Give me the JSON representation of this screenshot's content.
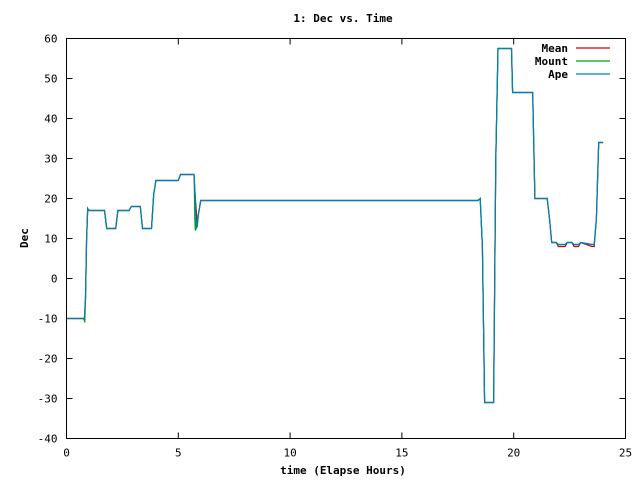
{
  "chart_data": {
    "type": "line",
    "title": "1: Dec vs. Time",
    "xlabel": "time (Elapse Hours)",
    "ylabel": "Dec",
    "xlim": [
      0,
      25
    ],
    "ylim": [
      -40,
      60
    ],
    "xticks": [
      0,
      5,
      10,
      15,
      20,
      25
    ],
    "yticks": [
      -40,
      -30,
      -20,
      -10,
      0,
      10,
      20,
      30,
      40,
      50,
      60
    ],
    "legend_position": "top-right",
    "grid": false,
    "series": [
      {
        "name": "Mean",
        "color": "#cc0000",
        "x": [
          0,
          0.8,
          0.85,
          0.9,
          0.95,
          1.0,
          1.7,
          1.8,
          2.2,
          2.3,
          2.8,
          2.9,
          3.3,
          3.4,
          3.8,
          3.9,
          4.0,
          5.0,
          5.1,
          5.7,
          5.75,
          5.85,
          5.9,
          6.0,
          6.1,
          18.4,
          18.5,
          18.6,
          18.7,
          18.8,
          19.1,
          19.2,
          19.3,
          19.9,
          19.95,
          20.85,
          20.9,
          20.95,
          21.5,
          21.6,
          21.7,
          21.9,
          22.0,
          22.3,
          22.4,
          22.6,
          22.7,
          22.9,
          23.0,
          23.5,
          23.6,
          23.7,
          23.8,
          24.0
        ],
        "y": [
          -10,
          -10,
          -5,
          10,
          17.5,
          17,
          17,
          12.5,
          12.5,
          17,
          17,
          18,
          18,
          12.5,
          12.5,
          21,
          24.5,
          24.5,
          26,
          26,
          21,
          13.5,
          16,
          19.5,
          19.5,
          19.5,
          20,
          8,
          -31,
          -31,
          -31,
          30,
          57.5,
          57.5,
          46.5,
          46.5,
          33,
          20,
          20,
          15,
          9,
          9,
          8,
          8,
          9,
          9,
          8,
          8,
          9,
          8,
          8,
          15,
          34,
          34
        ]
      },
      {
        "name": "Mount",
        "color": "#00a000",
        "x": [
          0,
          0.75,
          0.8,
          0.82,
          0.85,
          0.9,
          0.95,
          1.0,
          1.7,
          1.8,
          2.2,
          2.3,
          2.8,
          2.9,
          3.3,
          3.4,
          3.8,
          3.9,
          4.0,
          5.0,
          5.1,
          5.7,
          5.72,
          5.74,
          5.76,
          5.8,
          5.85,
          5.9,
          6.0,
          6.1,
          18.4,
          18.5,
          18.6,
          18.7,
          18.8,
          19.1,
          19.2,
          19.3,
          19.9,
          19.95,
          20.85,
          20.9,
          20.95,
          21.5,
          21.6,
          21.7,
          21.9,
          22.0,
          22.3,
          22.4,
          22.6,
          22.7,
          22.9,
          23.0,
          23.5,
          23.6,
          23.7,
          23.8,
          24.0
        ],
        "y": [
          -10,
          -10,
          -10.5,
          -11,
          -5,
          10,
          17.5,
          17,
          17,
          12.5,
          12.5,
          17,
          17,
          18,
          18,
          12.5,
          12.5,
          21,
          24.5,
          24.5,
          26,
          26,
          22,
          15,
          12,
          12.5,
          13,
          16,
          19.5,
          19.5,
          19.5,
          20,
          8,
          -31,
          -31,
          -31,
          30,
          57.5,
          57.5,
          46.5,
          46.5,
          33,
          20,
          20,
          15,
          9,
          9,
          8.5,
          8.5,
          9,
          9,
          8.5,
          8.5,
          9,
          8.5,
          8.5,
          15,
          34,
          34
        ]
      },
      {
        "name": "Ape",
        "color": "#0080c0",
        "x": [
          0,
          0.8,
          0.85,
          0.9,
          0.95,
          1.0,
          1.7,
          1.8,
          2.2,
          2.3,
          2.8,
          2.9,
          3.3,
          3.4,
          3.8,
          3.9,
          4.0,
          5.0,
          5.1,
          5.7,
          5.75,
          5.8,
          5.9,
          6.0,
          6.1,
          18.4,
          18.5,
          18.6,
          18.7,
          18.8,
          19.1,
          19.2,
          19.3,
          19.9,
          19.95,
          20.85,
          20.9,
          20.95,
          21.5,
          21.6,
          21.7,
          21.9,
          22.0,
          22.3,
          22.4,
          22.6,
          22.7,
          22.9,
          23.0,
          23.5,
          23.6,
          23.7,
          23.8,
          24.0
        ],
        "y": [
          -10,
          -10,
          -5,
          10,
          17.5,
          17,
          17,
          12.5,
          12.5,
          17,
          17,
          18,
          18,
          12.5,
          12.5,
          21,
          24.5,
          24.5,
          26,
          26,
          21,
          12.5,
          16,
          19.5,
          19.5,
          19.5,
          20,
          8,
          -31,
          -31,
          -31,
          30,
          57.5,
          57.5,
          46.5,
          46.5,
          33,
          20,
          20,
          15,
          9,
          9,
          8.5,
          8.5,
          9,
          9,
          8.5,
          8.5,
          9,
          8.5,
          8.5,
          15,
          34,
          34
        ]
      }
    ]
  }
}
